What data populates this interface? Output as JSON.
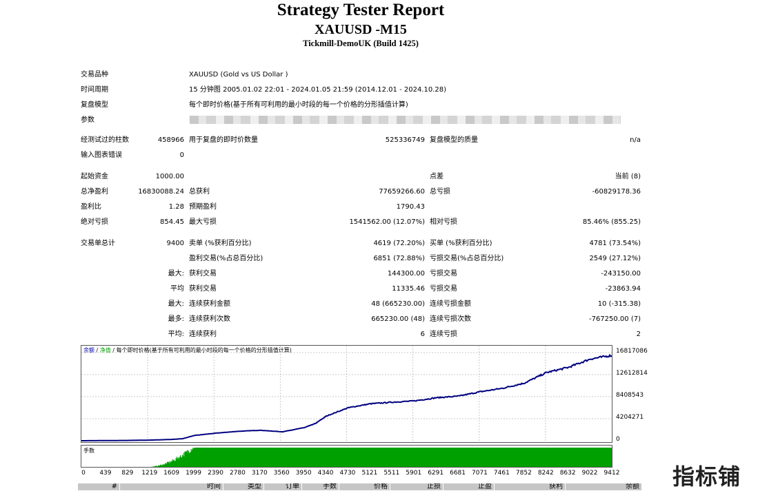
{
  "header": {
    "title": "Strategy Tester Report",
    "symbol": "XAUUSD -M15",
    "server": "Tickmill-DemoUK (Build 1425)"
  },
  "info": {
    "symbol_label": "交易品种",
    "symbol_value": "XAUUSD (Gold vs US Dollar )",
    "period_label": "时间周期",
    "period_value": "15 分钟图 2005.01.02 22:01 - 2024.01.05 21:59 (2014.12.01 - 2024.10.28)",
    "model_label": "复盘模型",
    "model_value": "每个即时价格(基于所有可利用的最小时段的每一个价格的分形插值计算)",
    "params_label": "参数",
    "params_value": "i"
  },
  "stats": {
    "bars_label": "经测试过的柱数",
    "bars_value": "458966",
    "ticks_label": "用于复盘的即时价数量",
    "ticks_value": "525336749",
    "quality_label": "复盘模型的质量",
    "quality_value": "n/a",
    "errors_label": "输入图表错误",
    "errors_value": "0",
    "deposit_label": "起始资金",
    "deposit_value": "1000.00",
    "spread_label": "点差",
    "spread_value": "当前 (8)",
    "net_label": "总净盈利",
    "net_value": "16830088.24",
    "gross_profit_label": "总获利",
    "gross_profit_value": "77659266.60",
    "gross_loss_label": "总亏损",
    "gross_loss_value": "-60829178.36",
    "pf_label": "盈利比",
    "pf_value": "1.28",
    "expected_label": "预期盈利",
    "expected_value": "1790.43",
    "abs_dd_label": "绝对亏损",
    "abs_dd_value": "854.45",
    "max_dd_label": "最大亏损",
    "max_dd_value": "1541562.00 (12.07%)",
    "rel_dd_label": "相对亏损",
    "rel_dd_value": "85.46% (855.25)",
    "trades_label": "交易单总计",
    "trades_value": "9400",
    "short_label": "卖单 (%获利百分比)",
    "short_value": "4619 (72.20%)",
    "long_label": "买单 (%获利百分比)",
    "long_value": "4781 (73.54%)",
    "profit_trades_label": "盈利交易(%占总百分比)",
    "profit_trades_value": "6851 (72.88%)",
    "loss_trades_label": "亏损交易(%占总百分比)",
    "loss_trades_value": "2549 (27.12%)",
    "largest_label": "最大:",
    "largest_profit_label": "获利交易",
    "largest_profit_value": "144300.00",
    "largest_loss_label": "亏损交易",
    "largest_loss_value": "-243150.00",
    "average_label": "平均",
    "average_profit_label": "获利交易",
    "average_profit_value": "11335.46",
    "average_loss_label": "亏损交易",
    "average_loss_value": "-23863.94",
    "max_label": "最大:",
    "max_cons_wins_label": "连续获利金额",
    "max_cons_wins_value": "48 (665230.00)",
    "max_cons_losses_label": "连续亏损金额",
    "max_cons_losses_value": "10 (-315.38)",
    "maximal_label": "最多:",
    "maximal_cons_profit_label": "连续获利次数",
    "maximal_cons_profit_value": "665230.00 (48)",
    "maximal_cons_loss_label": "连续亏损次数",
    "maximal_cons_loss_value": "-767250.00 (7)",
    "avg_cons_label": "平均:",
    "avg_cons_wins_label": "连续获利",
    "avg_cons_wins_value": "6",
    "avg_cons_losses_label": "连续亏损",
    "avg_cons_losses_value": "2"
  },
  "chart": {
    "legend_balance": "余额",
    "legend_sep": "/",
    "legend_equity": "净值",
    "legend_model": "/ 每个即时价格(基于所有可利用的最小时段的每一个价格的分形插值计算)",
    "volume_label": "手数",
    "line_color": "#000080",
    "volume_color": "#00a000",
    "y_ticks": [
      "16817086",
      "12612814",
      "8408543",
      "4204271",
      "0"
    ],
    "x_ticks": [
      "0",
      "439",
      "829",
      "1219",
      "1609",
      "1999",
      "2390",
      "2780",
      "3170",
      "3560",
      "3950",
      "4340",
      "4730",
      "5121",
      "5511",
      "5901",
      "6291",
      "6681",
      "7071",
      "7461",
      "7852",
      "8242",
      "8632",
      "9022",
      "9412"
    ]
  },
  "chart_data": {
    "type": "line",
    "xlabel": "",
    "ylabel": "",
    "ylim": [
      0,
      16817086
    ],
    "xlim": [
      0,
      9400
    ],
    "grid": true,
    "series": [
      {
        "x": [
          0,
          439,
          829,
          1219,
          1609,
          1800,
          1999,
          2390,
          2780,
          3170,
          3560,
          3950,
          4150,
          4340,
          4730,
          5121,
          5511,
          5901,
          6291,
          6681,
          7071,
          7461,
          7852,
          8242,
          8632,
          9022,
          9412
        ],
        "values": [
          0,
          30000,
          60000,
          120000,
          250000,
          400000,
          1000000,
          1450000,
          1800000,
          2000000,
          1700000,
          2500000,
          3300000,
          4700000,
          6300000,
          7050000,
          7350000,
          7600000,
          8200000,
          8500000,
          9350000,
          10000000,
          11000000,
          13000000,
          14000000,
          15600000,
          16300000
        ]
      }
    ]
  },
  "table": {
    "columns": [
      "#",
      "时间",
      "类型",
      "订单",
      "手数",
      "价格",
      "止损",
      "止盈",
      "获利",
      "余额"
    ]
  },
  "watermark": "指标铺"
}
